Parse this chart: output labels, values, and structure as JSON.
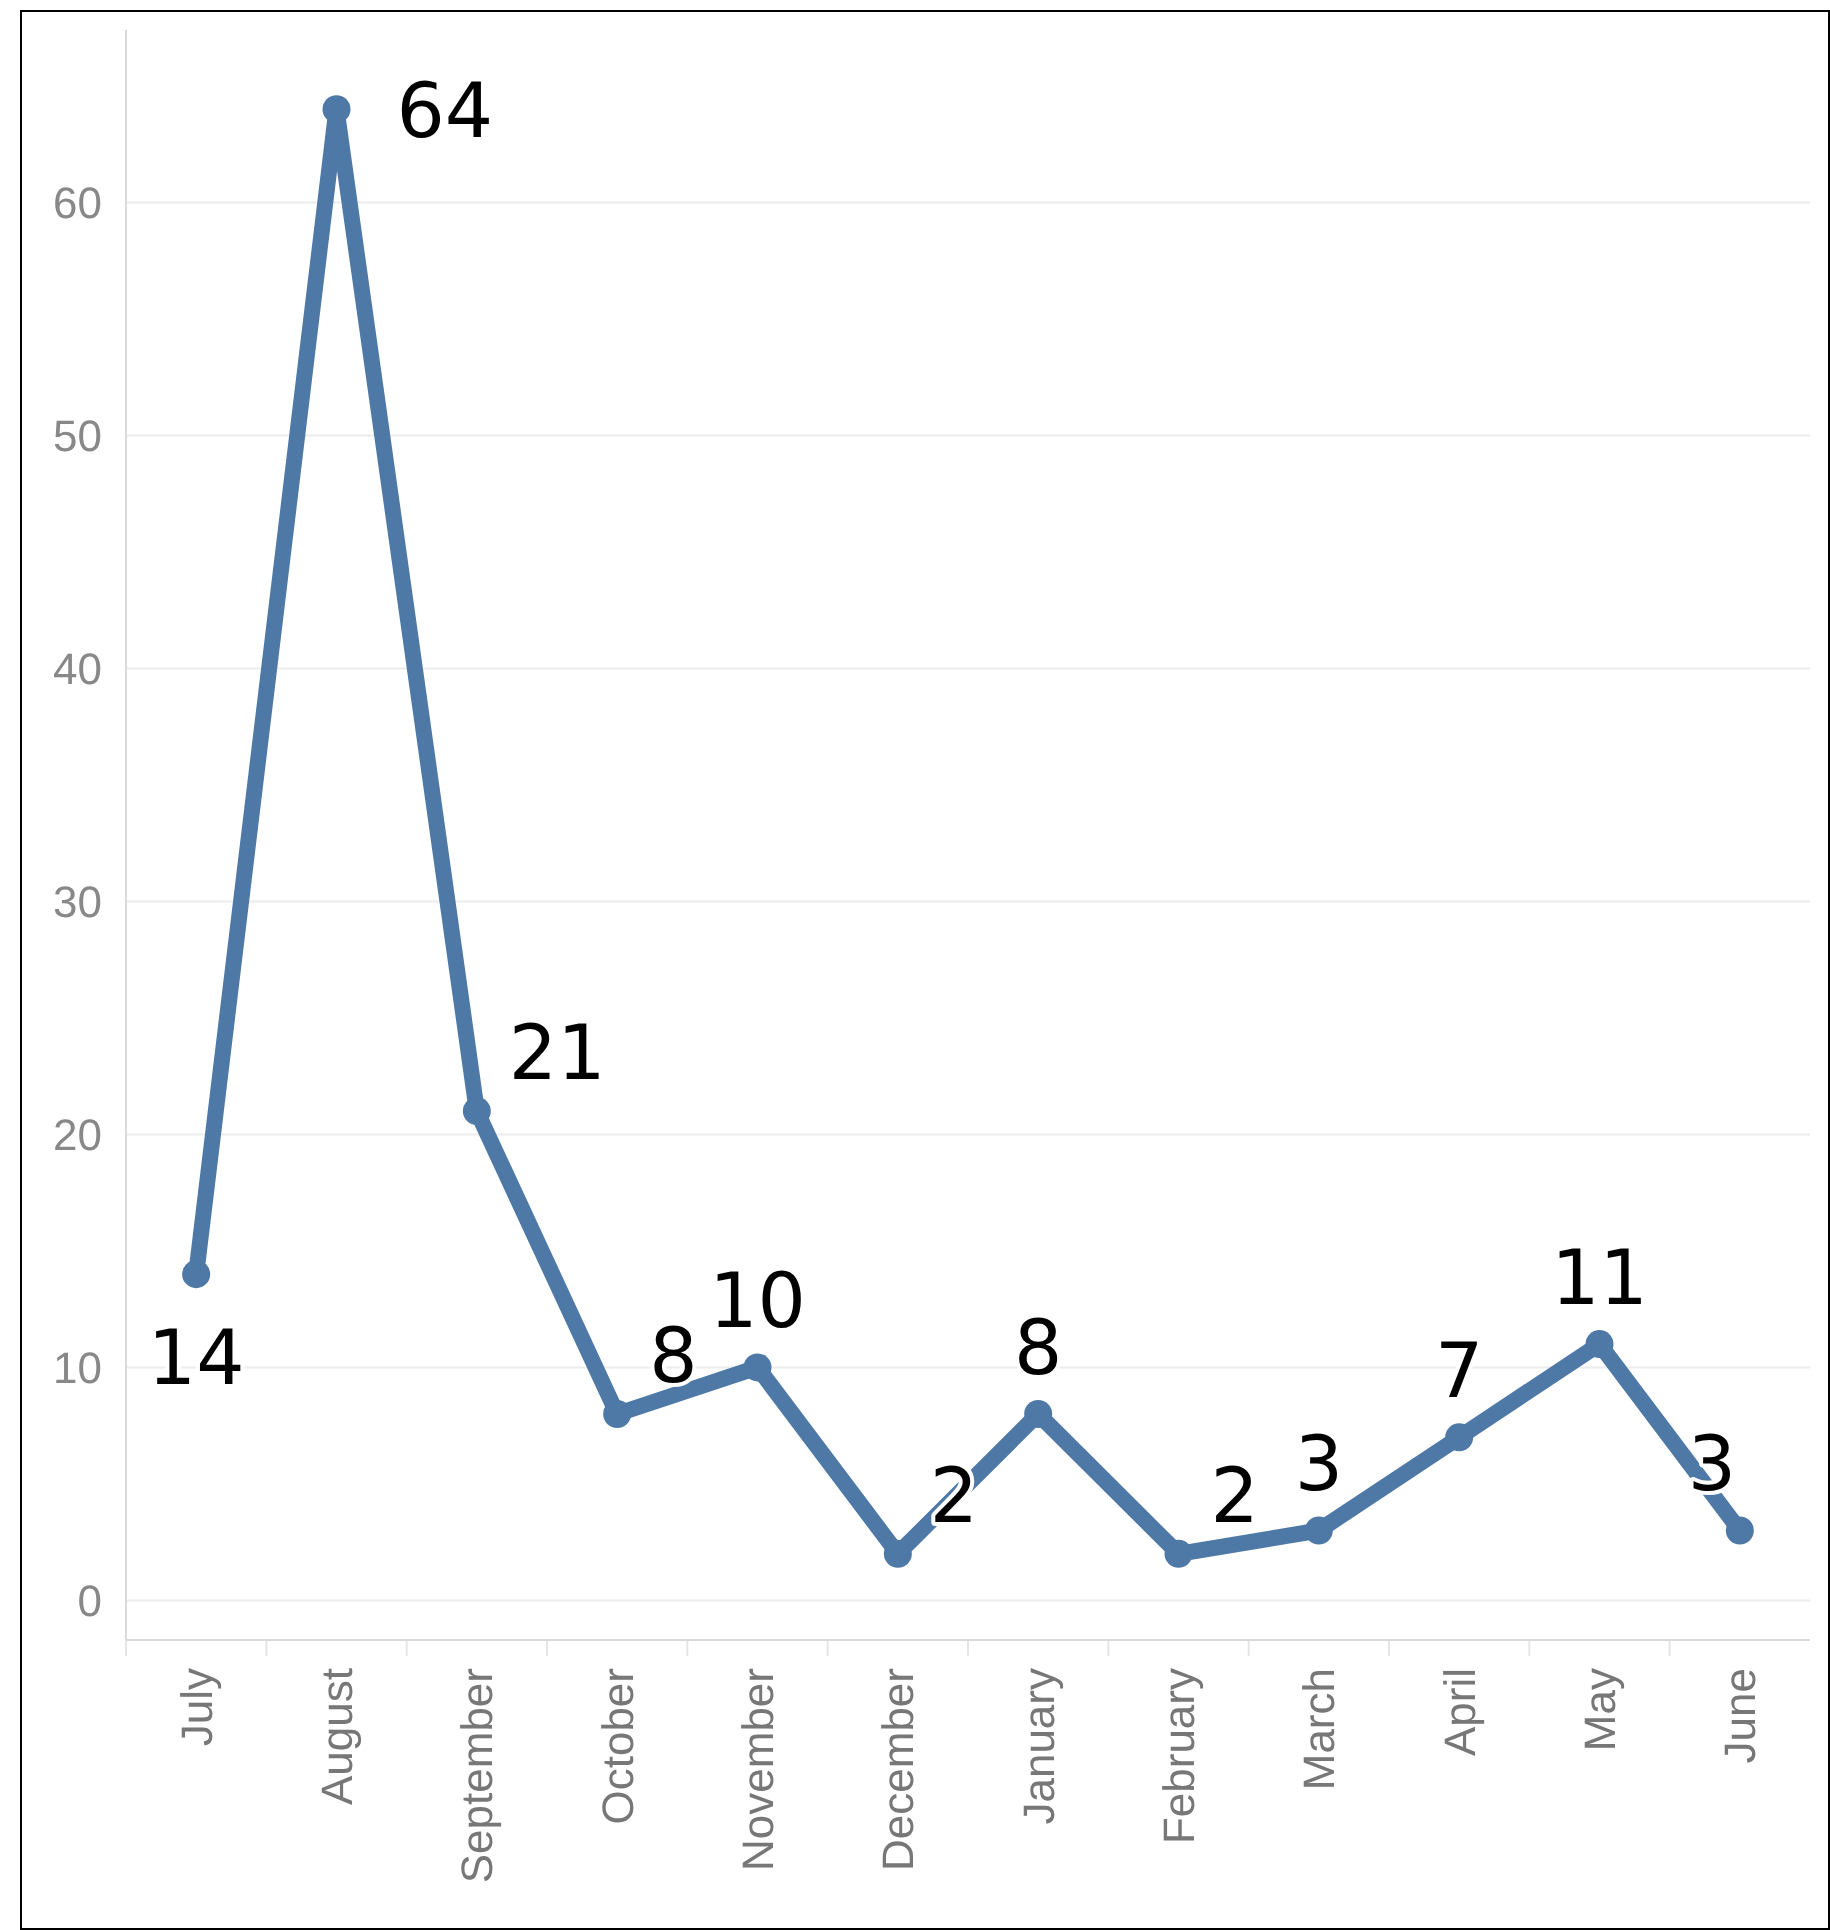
{
  "chart_data": {
    "type": "line",
    "categories": [
      "July",
      "August",
      "September",
      "October",
      "November",
      "December",
      "January",
      "February",
      "March",
      "April",
      "May",
      "June"
    ],
    "series": [
      {
        "color": "#4e79a7",
        "values": [
          14,
          64,
          21,
          8,
          10,
          2,
          8,
          2,
          3,
          7,
          11,
          3
        ]
      }
    ],
    "ylim": [
      -1.7,
      67.4
    ],
    "yticks": [
      0,
      10,
      20,
      30,
      40,
      50,
      60
    ],
    "grid": "y",
    "marker": "circle",
    "line_style": "solid",
    "data_labels": true
  }
}
